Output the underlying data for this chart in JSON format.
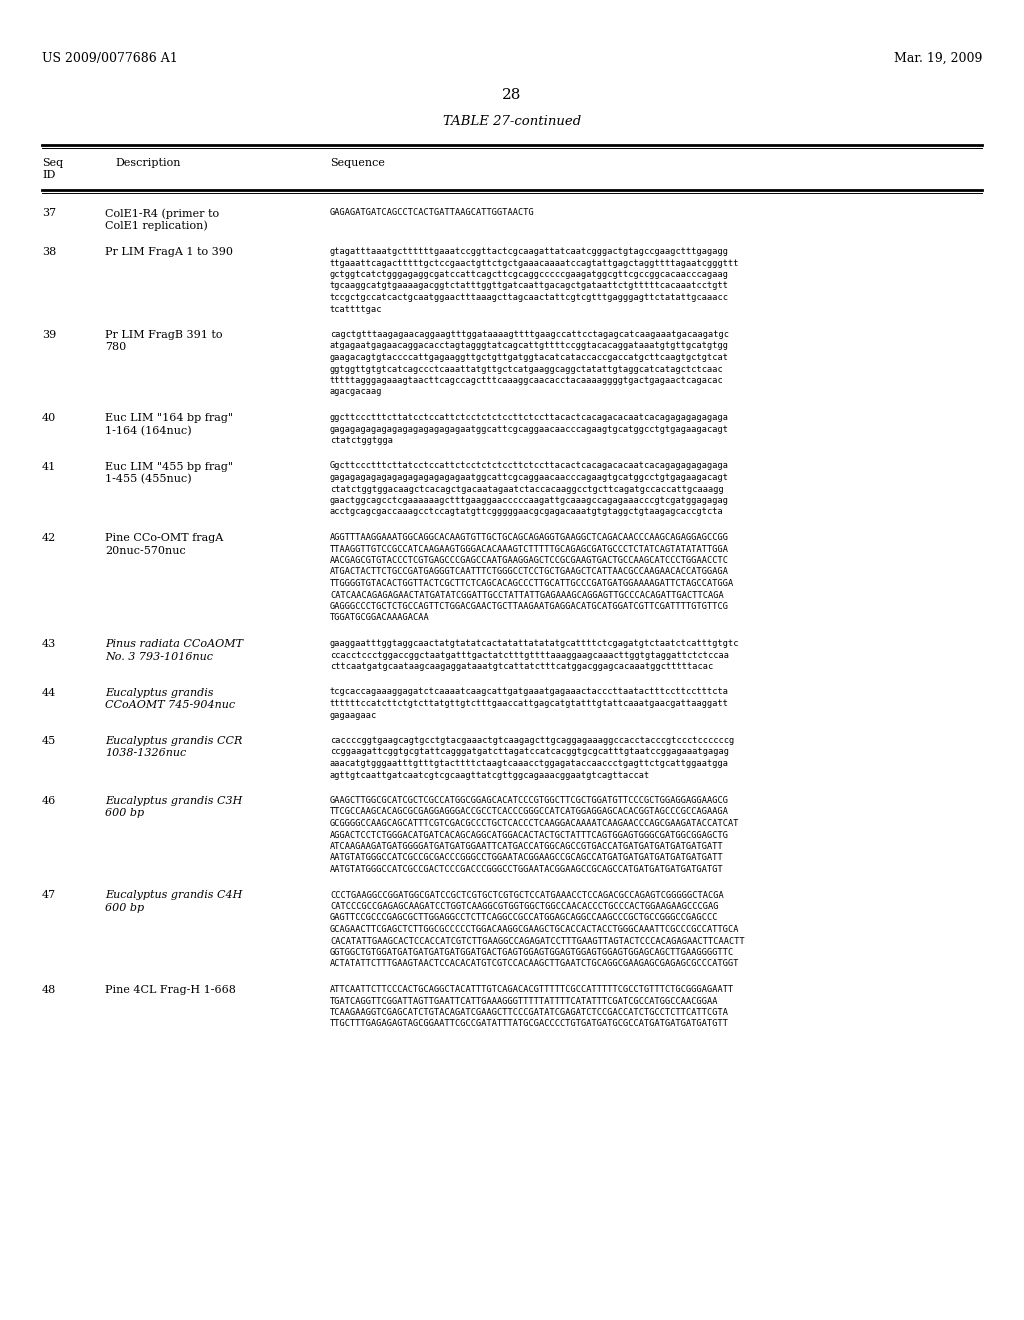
{
  "bg_color": "#ffffff",
  "header_left": "US 2009/0077686 A1",
  "header_right": "Mar. 19, 2009",
  "page_number": "28",
  "table_title": "TABLE 27-continued",
  "entries": [
    {
      "id": "37",
      "desc_lines": [
        "ColE1-R4 (primer to",
        "ColE1 replication)"
      ],
      "seq_lines": [
        "GAGAGATGATCAGCCTCACTGATTAAGCATTGGTAACTG"
      ],
      "desc_italic": false
    },
    {
      "id": "38",
      "desc_lines": [
        "Pr LIM FragA 1 to 390"
      ],
      "seq_lines": [
        "gtagatttaaatgcttttttgaaatccggttactcgcaagattatcaatcgggactgtagccgaagctttgagagg",
        "ttgaaattcagactttttgctccgaactgttctgctgaaacaaaatccagtattgagctaggttttagaatcgggttt",
        "gctggtcatctgggagaggcgatccattcagcttcgcaggcccccgaagatggcgttcgccggcacaacccagaag",
        "tgcaaggcatgtgaaaagacggtctatttggttgatcaattgacagctgataattctgtttttcacaaatcctgtt",
        "tccgctgccatcactgcaatggaactttaaagcttagcaactattcgtcgtttgagggagttctatattgcaaacc",
        "tcattttgac"
      ],
      "desc_italic": false
    },
    {
      "id": "39",
      "desc_lines": [
        "Pr LIM FragB 391 to",
        "780"
      ],
      "seq_lines": [
        "cagctgtttaagagaacaggaagtttggataaaagttttgaagccattcctagagcatcaagaaatgacaagatgc",
        "atgagaatgagaacaggacacctagtagggtatcagcattgttttccggtacacaggataaatgtgttgcatgtgg",
        "gaagacagtgtaccccattgagaaggttgctgttgatggtacatcataccaccgaccatgcttcaagtgctgtcat",
        "ggtggttgtgtcatcagccctcaaattatgttgctcatgaaggcaggctatattgtaggcatcatagctctcaac",
        "tttttagggagaaagtaacttcagccagctttcaaaggcaacacctacaaaaggggtgactgagaactcagacac",
        "agacgacaag"
      ],
      "desc_italic": false
    },
    {
      "id": "40",
      "desc_lines": [
        "Euc LIM \"164 bp frag\"",
        "1-164 (164nuc)"
      ],
      "seq_lines": [
        "ggcttccctttcttatcctccattctcctctctccttctccttacactcacagacacaatcacagagagagagaga",
        "gagagagagagagagagagagagagaatggcattcgcaggaacaacccagaagtgcatggcctgtgagaagacagt",
        "ctatctggtgga"
      ],
      "desc_italic": false
    },
    {
      "id": "41",
      "desc_lines": [
        "Euc LIM \"455 bp frag\"",
        "1-455 (455nuc)"
      ],
      "seq_lines": [
        "Ggcttccctttcttatcctccattctcctctctccttctccttacactcacagacacaatcacagagagagagaga",
        "gagagagagagagagagagagagagaatggcattcgcaggaacaacccagaagtgcatggcctgtgagaagacagt",
        "ctatctggtggacaagctcacagctgacaatagaatctaccacaaggcctgcttcagatgccaccattgcaaagg",
        "gaactggcagcctcgaaaaaagctttgaaggaacccccaagattgcaaagccagagaaacccgtcgatggagagag",
        "acctgcagcgaccaaagcctccagtatgttcgggggaacgcgagacaaatgtgtaggctgtaagagcaccgtcta"
      ],
      "desc_italic": false
    },
    {
      "id": "42",
      "desc_lines": [
        "Pine CCo-OMT fragA",
        "20nuc-570nuc"
      ],
      "seq_lines": [
        "AGGTTTAAGGAAATGGCAGGCACAAGTGTTGCTGCAGCAGAGGTGAAGGCTCAGACAACCCAAGCAGAGGAGCCGG",
        "TTAAGGTTGTCCGCCATCAAGAAGTGGGACACAAAGTCTTTTTGCAGAGCGATGCCCTCTATCAGTATATATTGGA",
        "AACGAGCGTGTACCCTCGTGAGCCCGAGCCAATGAAGGAGCTCCGCGAAGTGACTGCCAAGCATCCCTGGAACCTC",
        "ATGACTACTTCTGCCGATGAGGGTCAATTTCTGGGCCTCCTGCTGAAGCTCATTAACGCCAAGAACACCATGGAGA",
        "TTGGGGTGTACACTGGTTACTCGCTTCTCAGCACAGCCCTTGCATTGCCCGATGATGGAAAAGATTCTAGCCATGGA",
        "CATCAACAGAGAGAACTATGATATCGGATTGCCTATTATTGAGAAAGCAGGAGTTGCCCACAGATTGACTTCAGA",
        "GAGGGCCCTGCTCTGCCAGTTCTGGACGAACTGCTTAAGAATGAGGACATGCATGGATCGTTCGATTTTGTGTTCG",
        "TGGATGCGGACAAAGACAA"
      ],
      "desc_italic": false
    },
    {
      "id": "43",
      "desc_lines": [
        "Pinus radiata CCoAOMT",
        "No. 3 793-1016nuc"
      ],
      "seq_lines": [
        "gaaggaatttggtaggcaactatgtatatcactatattatatatgcattttctcgagatgtctaatctcatttgtgtc",
        "ccacctccctggaccggctaatgatttgactatctttgttttaaaggaagcaaacttggtgtaggattctctccaa",
        "cttcaatgatgcaataagcaagaggataaatgtcattatctttcatggacggagcacaaatggctttttacac"
      ],
      "desc_italic": true
    },
    {
      "id": "44",
      "desc_lines": [
        "Eucalyptus grandis",
        "CCoAOMT 745-904nuc"
      ],
      "seq_lines": [
        "tcgcaccagaaaggagatctcaaaatcaagcattgatgaaatgagaaactacccttaatactttccttcctttcta",
        "ttttttccatcttctgtcttatgttgtctttgaaccattgagcatgtatttgtattcaaatgaacgattaaggatt",
        "gagaagaac"
      ],
      "desc_italic": true
    },
    {
      "id": "45",
      "desc_lines": [
        "Eucalyptus grandis CCR",
        "1038-1326nuc"
      ],
      "seq_lines": [
        "caccccggtgaagcagtgcctgtacgaaactgtcaagagcttgcaggagaaaggccacctacccgtccctccccccg",
        "ccggaagattcggtgcgtattcagggatgatcttagatccatcacggtgcgcatttgtaatccggagaaatgagag",
        "aaacatgtgggaatttgtttgtacttttctaagtcaaacctggagataccaaccctgagttctgcattggaatgga",
        "agttgtcaattgatcaatcgtcgcaagttatcgttggcagaaacggaatgtcagttaccat"
      ],
      "desc_italic": true
    },
    {
      "id": "46",
      "desc_lines": [
        "Eucalyptus grandis C3H",
        "600 bp"
      ],
      "seq_lines": [
        "GAAGCTTGGCGCATCGCTCGCCATGGCGGAGCACATCCCGTGGCTTCGCTGGATGTTCCCGCTGGAGGAGGAAGCG",
        "TTCGCCAAGCACAGCGCGAGGAGGGACCGCCTCACCCGGGCCATCATGGAGGAGCACACGGTAGCCCGCCAGAAGA",
        "GCGGGGCCAAGCAGCATTTCGTCGACGCCCTGCTCACCCTCAAGGACAAAATCAAGAACCCAGCGAAGATACCATCAT",
        "AGGACTCCTCTGGGACATGATCACAGCAGGCATGGACACTACTGCTATTTCAGTGGAGTGGGCGATGGCGGAGCTG",
        "ATCAAGAAGATGATGGGGATGATGATGGAATTCATGACCATGGCAGCCGTGACCATGATGATGATGATGATGATT",
        "AATGTATGGGCCATCGCCGCGACCCGGGCCTGGAATACGGAAGCCGCAGCCATGATGATGATGATGATGATGATT",
        "AATGTATGGGCCATCGCCGACTCCCGACCCGGGCCTGGAATACGGAAGCCGCAGCCATGATGATGATGATGATGT"
      ],
      "desc_italic": true
    },
    {
      "id": "47",
      "desc_lines": [
        "Eucalyptus grandis C4H",
        "600 bp"
      ],
      "seq_lines": [
        "CCCTGAAGGCCGGATGGCGATCCGCTCGTGCTCGTGCTCCATGAAACCTCCAGACGCCAGAGTCGGGGGCTACGA",
        "CATCCCGCCGAGAGCAAGATCCTGGTCAAGGCGTGGTGGCTGGCCAACACCCTGCCCACTGGAAGAAGCCCGAG",
        "GAGTTCCGCCCGAGCGCTTGGAGGCCTCTTCAGGCCGCCATGGAGCAGGCCAAGCCCGCTGCCGGGCCGAGCCC",
        "GCAGAACTTCGAGCTCTTGGCGCCCCCTGGACAAGGCGAAGCTGCACCACTACCTGGGCAAATTCGCCCGCCATTGCA",
        "CACATATTGAAGCACTCCACCATCGTCTTGAAGGCCAGAGATCCTTTGAAGTTAGTACTCCCACAGAGAACTTCAACTT",
        "GGTGGCTGTGGATGATGATGATGATGGATGACTGAGTGGAGTGGAGTGGAGTGGAGTGGAGCAGCTTGAAGGGGTTC",
        "ACTATATTCTTTGAAGTAACTCCACACATGTCGTCCACAAGCTTGAATCTGCAGGCGAAGAGCGAGAGCGCCCATGGT"
      ],
      "desc_italic": true
    },
    {
      "id": "48",
      "desc_lines": [
        "Pine 4CL Frag-H 1-668"
      ],
      "seq_lines": [
        "ATTCAATTCTTCCCACTGCAGGCTACATTTGTCAGACACGTTTTTCGCCATTTTTCGCCTGTTTCTGCGGGAGAATT",
        "TGATCAGGTTCGGATTAGTTGAATTCATTGAAAGGGTTTTTATTTTCATATTTCGATCGCCATGGCCAACGGAA",
        "TCAAGAAGGTCGAGCATCTGTACAGATCGAAGCTTCCCGATATCGAGATCTCCGACCATCTGCCTCTTCATTCGTA",
        "TTGCTTTGAGAGAGTAGCGGAATTCGCCGATATTTATGCGACCCCTGTGATGATGCGCCATGATGATGATGATGTT"
      ],
      "desc_italic": false
    }
  ]
}
